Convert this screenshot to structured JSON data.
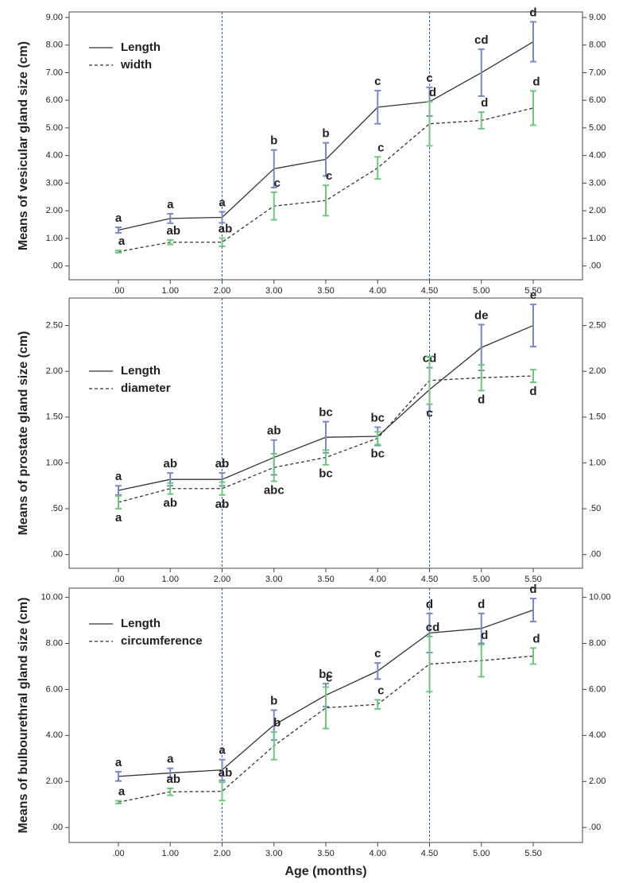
{
  "chart_data": [
    {
      "type": "line",
      "y_label": "Means of vesicular gland size (cm)",
      "categories": [
        ".00",
        "1.00",
        "2.00",
        "3.00",
        "3.50",
        "4.00",
        "4.50",
        "5.00",
        "5.50"
      ],
      "ylim": [
        -0.5,
        9.2
      ],
      "yticks": [
        {
          "value": 0,
          "label": ".00"
        },
        {
          "value": 1,
          "label": "1.00"
        },
        {
          "value": 2,
          "label": "2.00"
        },
        {
          "value": 3,
          "label": "3.00"
        },
        {
          "value": 4,
          "label": "4.00"
        },
        {
          "value": 5,
          "label": "5.00"
        },
        {
          "value": 6,
          "label": "6.00"
        },
        {
          "value": 7,
          "label": "7.00"
        },
        {
          "value": 8,
          "label": "8.00"
        },
        {
          "value": 9,
          "label": "9.00"
        }
      ],
      "legend": "upper left",
      "series": [
        {
          "name": "Length",
          "color": "#333333",
          "dashed": false,
          "error_color": "#7b88c8",
          "values": [
            1.3,
            1.72,
            1.76,
            3.52,
            3.86,
            5.75,
            5.95,
            7.0,
            8.12
          ],
          "errors": [
            0.1,
            0.17,
            0.2,
            0.68,
            0.6,
            0.6,
            0.52,
            0.85,
            0.72
          ],
          "letters": [
            "a",
            "a",
            "a",
            "b",
            "b",
            "c",
            "c",
            "cd",
            "d"
          ]
        },
        {
          "name": "width",
          "color": "#333333",
          "dashed": true,
          "error_color": "#6cc97a",
          "values": [
            0.52,
            0.86,
            0.86,
            2.17,
            2.37,
            3.55,
            5.15,
            5.27,
            5.72
          ],
          "errors": [
            0.04,
            0.08,
            0.15,
            0.5,
            0.55,
            0.4,
            0.8,
            0.3,
            0.62
          ],
          "letters": [
            "a",
            "ab",
            "ab",
            "c",
            "c",
            "c",
            "d",
            "d",
            "d"
          ]
        }
      ]
    },
    {
      "type": "line",
      "y_label": "Means of prostate gland size (cm)",
      "categories": [
        ".00",
        "1.00",
        "2.00",
        "3.00",
        "3.50",
        "4.00",
        "4.50",
        "5.00",
        "5.50"
      ],
      "ylim": [
        -0.15,
        2.8
      ],
      "yticks": [
        {
          "value": 0,
          "label": ".00"
        },
        {
          "value": 0.5,
          "label": ".50"
        },
        {
          "value": 1,
          "label": "1.00"
        },
        {
          "value": 1.5,
          "label": "1.50"
        },
        {
          "value": 2,
          "label": "2.00"
        },
        {
          "value": 2.5,
          "label": "2.50"
        }
      ],
      "legend": "upper left",
      "series": [
        {
          "name": "Length",
          "color": "#333333",
          "dashed": false,
          "error_color": "#7b88c8",
          "values": [
            0.7,
            0.82,
            0.82,
            1.06,
            1.28,
            1.29,
            1.8,
            2.26,
            2.5
          ],
          "errors": [
            0.05,
            0.07,
            0.07,
            0.19,
            0.17,
            0.1,
            0.24,
            0.25,
            0.23
          ],
          "letters": [
            "a",
            "ab",
            "ab",
            "ab",
            "bc",
            "bc",
            "cd",
            "de",
            "e"
          ]
        },
        {
          "name": "diameter",
          "color": "#333333",
          "dashed": true,
          "error_color": "#6cc97a",
          "values": [
            0.57,
            0.72,
            0.72,
            0.95,
            1.06,
            1.27,
            1.9,
            1.93,
            1.95
          ],
          "errors": [
            0.07,
            0.06,
            0.07,
            0.15,
            0.08,
            0.07,
            0.26,
            0.14,
            0.07
          ],
          "letters": [
            "a",
            "ab",
            "ab",
            "abc",
            "bc",
            "bc",
            "c",
            "d",
            "d"
          ]
        }
      ]
    },
    {
      "type": "line",
      "y_label": "Means of bulbourethral gland size (cm)",
      "x_label": "Age (months)",
      "categories": [
        ".00",
        "1.00",
        "2.00",
        "3.00",
        "3.50",
        "4.00",
        "4.50",
        "5.00",
        "5.50"
      ],
      "ylim": [
        -0.65,
        10.4
      ],
      "yticks": [
        {
          "value": 0,
          "label": ".00"
        },
        {
          "value": 2,
          "label": "2.00"
        },
        {
          "value": 4,
          "label": "4.00"
        },
        {
          "value": 6,
          "label": "6.00"
        },
        {
          "value": 8,
          "label": "8.00"
        },
        {
          "value": 10,
          "label": "10.00"
        }
      ],
      "legend": "upper left",
      "series": [
        {
          "name": "Length",
          "color": "#333333",
          "dashed": false,
          "error_color": "#7b88c8",
          "values": [
            2.22,
            2.37,
            2.5,
            4.45,
            5.75,
            6.8,
            8.45,
            8.65,
            9.45
          ],
          "errors": [
            0.2,
            0.2,
            0.45,
            0.65,
            0.5,
            0.35,
            0.85,
            0.65,
            0.5
          ],
          "letters": [
            "a",
            "a",
            "a",
            "b",
            "bc",
            "c",
            "d",
            "d",
            "d"
          ]
        },
        {
          "name": "circumference",
          "color": "#333333",
          "dashed": true,
          "error_color": "#6cc97a",
          "values": [
            1.1,
            1.55,
            1.57,
            3.55,
            5.2,
            5.35,
            7.1,
            7.25,
            7.45
          ],
          "errors": [
            0.06,
            0.15,
            0.4,
            0.6,
            0.9,
            0.2,
            1.2,
            0.7,
            0.35
          ],
          "letters": [
            "a",
            "ab",
            "ab",
            "b",
            "c",
            "c",
            "cd",
            "d",
            "d"
          ]
        }
      ]
    }
  ]
}
